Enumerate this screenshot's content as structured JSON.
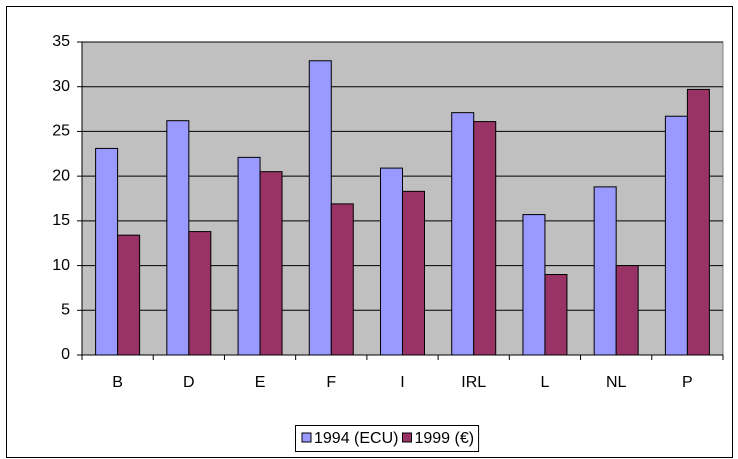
{
  "chart_data": {
    "type": "bar",
    "categories": [
      "B",
      "D",
      "E",
      "F",
      "I",
      "IRL",
      "L",
      "NL",
      "P"
    ],
    "series": [
      {
        "name": "1994 (ECU)",
        "color": "#9999ff",
        "values": [
          23.1,
          26.2,
          22.1,
          32.9,
          20.9,
          27.1,
          15.7,
          18.8,
          26.7
        ]
      },
      {
        "name": "1999 (€)",
        "color": "#993366",
        "values": [
          13.4,
          13.8,
          20.5,
          16.9,
          18.3,
          26.1,
          9.0,
          10.0,
          29.7
        ]
      }
    ],
    "ylim": [
      0,
      35
    ],
    "yticks": [
      0,
      5,
      10,
      15,
      20,
      25,
      30,
      35
    ],
    "grid": true,
    "legend": "bottom"
  }
}
